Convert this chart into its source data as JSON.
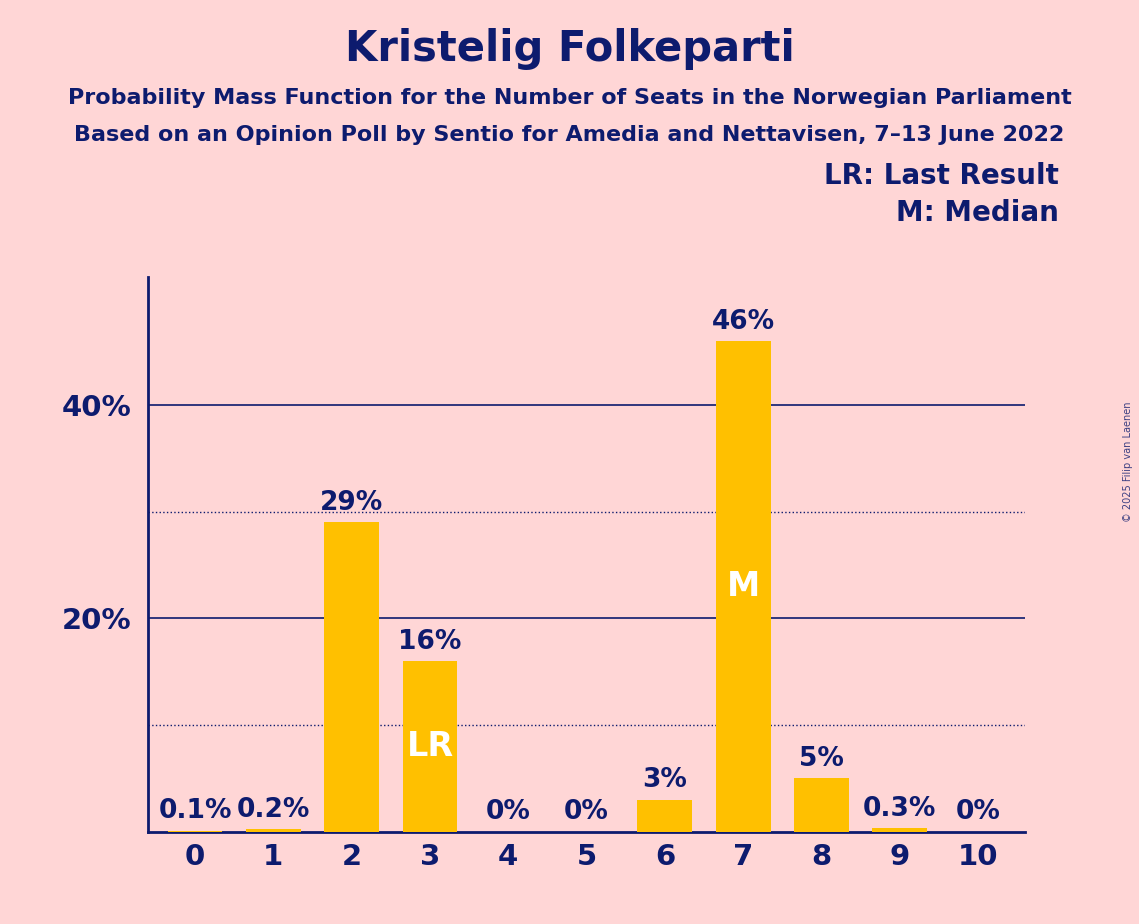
{
  "title": "Kristelig Folkeparti",
  "subtitle1": "Probability Mass Function for the Number of Seats in the Norwegian Parliament",
  "subtitle2": "Based on an Opinion Poll by Sentio for Amedia and Nettavisen, 7–13 June 2022",
  "copyright": "© 2025 Filip van Laenen",
  "categories": [
    0,
    1,
    2,
    3,
    4,
    5,
    6,
    7,
    8,
    9,
    10
  ],
  "values": [
    0.1,
    0.2,
    29,
    16,
    0,
    0,
    3,
    46,
    5,
    0.3,
    0
  ],
  "bar_color": "#FFC000",
  "background_color": "#FFD6D6",
  "axis_color": "#0D1B6E",
  "text_color": "#0D1B6E",
  "ylabel_ticks": [
    20,
    40
  ],
  "dotted_lines": [
    10,
    30
  ],
  "ylim": [
    0,
    52
  ],
  "lr_index": 3,
  "median_index": 7,
  "legend_lr": "LR: Last Result",
  "legend_m": "M: Median",
  "title_fontsize": 30,
  "subtitle_fontsize": 16,
  "tick_fontsize": 21,
  "bar_label_fontsize": 19,
  "inside_label_fontsize": 24,
  "legend_fontsize": 20
}
